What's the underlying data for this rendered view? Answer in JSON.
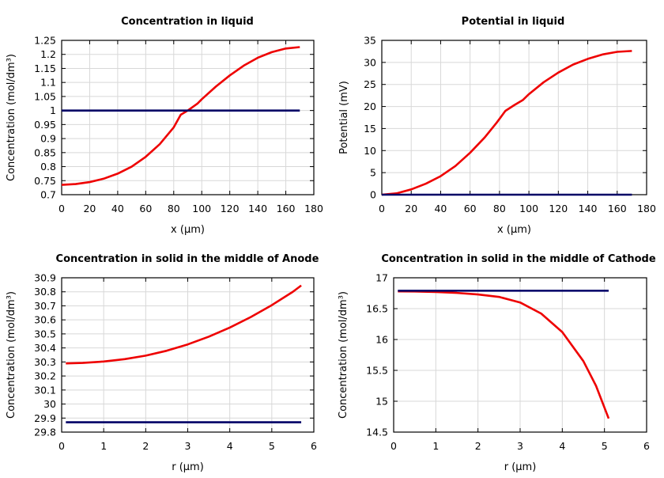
{
  "colors": {
    "red": "#ee0000",
    "blue": "#000066",
    "grid": "#d8d8d8",
    "axis": "#000000"
  },
  "chart_data": [
    {
      "type": "line",
      "title": "Concentration in liquid",
      "xlabel": "x (μm)",
      "ylabel": "Concentration (mol/dm³)",
      "xlim": [
        0,
        180
      ],
      "ylim": [
        0.7,
        1.25
      ],
      "xticks": [
        "0",
        "20",
        "40",
        "60",
        "80",
        "100",
        "120",
        "140",
        "160",
        "180"
      ],
      "yticks": [
        "0.7",
        "0.75",
        "0.8",
        "0.85",
        "0.9",
        "0.95",
        "1",
        "1.05",
        "1.1",
        "1.15",
        "1.2",
        "1.25"
      ],
      "grid": true,
      "series": [
        {
          "color": "red",
          "points": [
            [
              0,
              0.735
            ],
            [
              10,
              0.738
            ],
            [
              20,
              0.745
            ],
            [
              30,
              0.757
            ],
            [
              40,
              0.775
            ],
            [
              50,
              0.8
            ],
            [
              60,
              0.835
            ],
            [
              70,
              0.88
            ],
            [
              80,
              0.94
            ],
            [
              85,
              0.985
            ],
            [
              90,
              1.0
            ],
            [
              97,
              1.025
            ],
            [
              100,
              1.04
            ],
            [
              110,
              1.085
            ],
            [
              120,
              1.125
            ],
            [
              130,
              1.16
            ],
            [
              140,
              1.188
            ],
            [
              150,
              1.208
            ],
            [
              160,
              1.221
            ],
            [
              170,
              1.226
            ]
          ]
        },
        {
          "color": "blue",
          "points": [
            [
              0,
              1.0
            ],
            [
              170,
              1.0
            ]
          ]
        }
      ]
    },
    {
      "type": "line",
      "title": "Potential in liquid",
      "xlabel": "x (μm)",
      "ylabel": "Potential (mV)",
      "xlim": [
        0,
        180
      ],
      "ylim": [
        0,
        35
      ],
      "xticks": [
        "0",
        "20",
        "40",
        "60",
        "80",
        "100",
        "120",
        "140",
        "160",
        "180"
      ],
      "yticks": [
        "0",
        "5",
        "10",
        "15",
        "20",
        "25",
        "30",
        "35"
      ],
      "grid": true,
      "series": [
        {
          "color": "red",
          "points": [
            [
              0,
              0
            ],
            [
              10,
              0.3
            ],
            [
              20,
              1.2
            ],
            [
              30,
              2.5
            ],
            [
              40,
              4.2
            ],
            [
              50,
              6.5
            ],
            [
              60,
              9.5
            ],
            [
              70,
              13
            ],
            [
              78,
              16.3
            ],
            [
              84,
              19
            ],
            [
              90,
              20.3
            ],
            [
              96,
              21.5
            ],
            [
              100,
              22.8
            ],
            [
              110,
              25.5
            ],
            [
              120,
              27.7
            ],
            [
              130,
              29.5
            ],
            [
              140,
              30.8
            ],
            [
              150,
              31.8
            ],
            [
              160,
              32.4
            ],
            [
              170,
              32.6
            ]
          ]
        },
        {
          "color": "blue",
          "points": [
            [
              0,
              0
            ],
            [
              170,
              0
            ]
          ]
        }
      ]
    },
    {
      "type": "line",
      "title": "Concentration in solid in the middle of Anode",
      "xlabel": "r (μm)",
      "ylabel": "Concentration (mol/dm³)",
      "xlim": [
        0,
        6
      ],
      "ylim": [
        29.8,
        30.9
      ],
      "xticks": [
        "0",
        "1",
        "2",
        "3",
        "4",
        "5",
        "6"
      ],
      "yticks": [
        "29.8",
        "29.9",
        "30",
        "30.1",
        "30.2",
        "30.3",
        "30.4",
        "30.5",
        "30.6",
        "30.7",
        "30.8",
        "30.9"
      ],
      "grid": true,
      "series": [
        {
          "color": "red",
          "points": [
            [
              0.1,
              30.29
            ],
            [
              0.5,
              30.293
            ],
            [
              1,
              30.303
            ],
            [
              1.5,
              30.32
            ],
            [
              2,
              30.345
            ],
            [
              2.5,
              30.38
            ],
            [
              3,
              30.425
            ],
            [
              3.5,
              30.48
            ],
            [
              4,
              30.545
            ],
            [
              4.5,
              30.62
            ],
            [
              5,
              30.705
            ],
            [
              5.5,
              30.8
            ],
            [
              5.7,
              30.845
            ]
          ]
        },
        {
          "color": "blue",
          "points": [
            [
              0.1,
              29.87
            ],
            [
              5.7,
              29.87
            ]
          ]
        }
      ]
    },
    {
      "type": "line",
      "title": "Concentration in solid in the middle of Cathode",
      "xlabel": "r (μm)",
      "ylabel": "Concentration (mol/dm³)",
      "xlim": [
        0,
        6
      ],
      "ylim": [
        14.5,
        17
      ],
      "xticks": [
        "0",
        "1",
        "2",
        "3",
        "4",
        "5",
        "6"
      ],
      "yticks": [
        "14.5",
        "15",
        "15.5",
        "16",
        "16.5",
        "17"
      ],
      "grid": true,
      "series": [
        {
          "color": "red",
          "points": [
            [
              0.1,
              16.78
            ],
            [
              0.5,
              16.778
            ],
            [
              1,
              16.77
            ],
            [
              1.5,
              16.755
            ],
            [
              2,
              16.73
            ],
            [
              2.5,
              16.69
            ],
            [
              3,
              16.6
            ],
            [
              3.5,
              16.42
            ],
            [
              4,
              16.12
            ],
            [
              4.5,
              15.65
            ],
            [
              4.8,
              15.25
            ],
            [
              5.1,
              14.72
            ]
          ]
        },
        {
          "color": "blue",
          "points": [
            [
              0.1,
              16.79
            ],
            [
              5.1,
              16.79
            ]
          ]
        }
      ]
    }
  ]
}
